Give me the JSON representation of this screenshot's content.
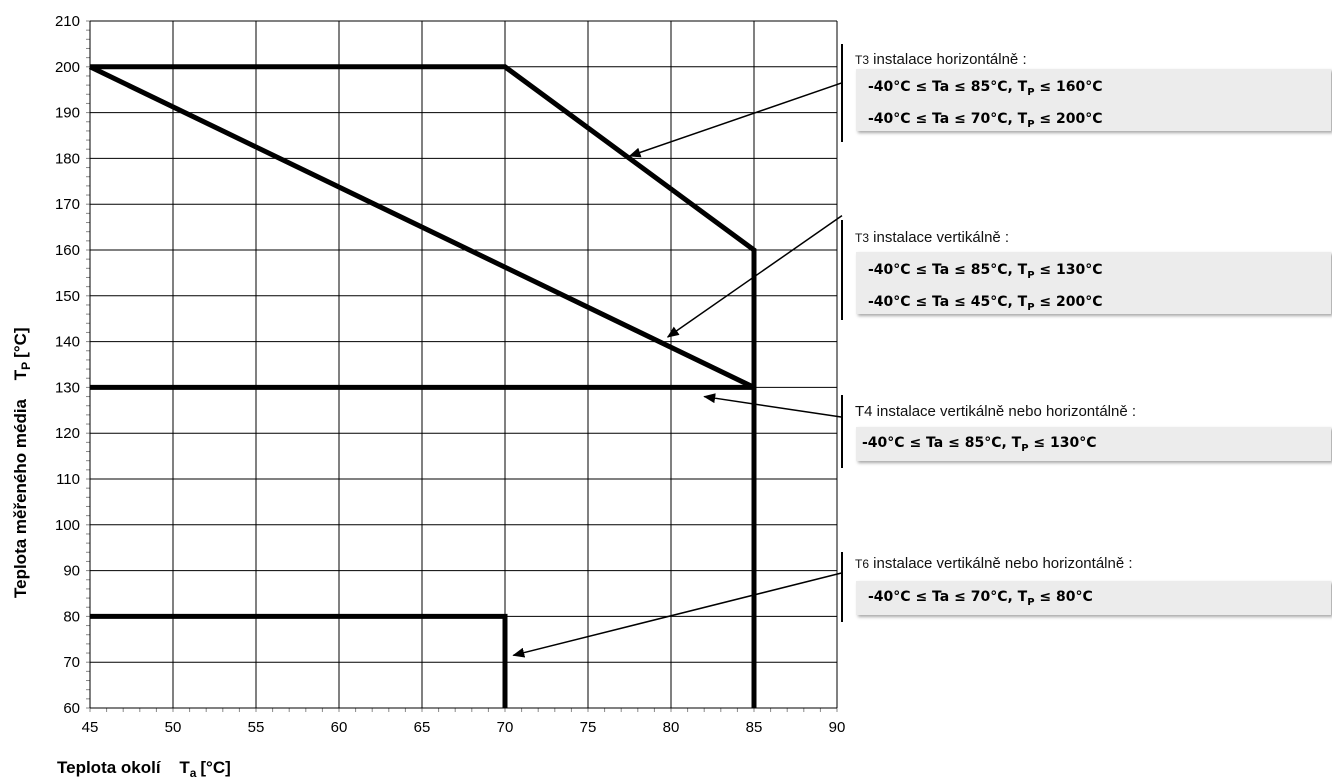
{
  "chart_data": {
    "type": "line",
    "xlabel": "Teplota okolí",
    "xlabel_unit": "T",
    "xlabel_unit_sub": "a",
    "xlabel_unit_tail": "[°C]",
    "ylabel": "Teplota měřeného média",
    "ylabel_unit": "T",
    "ylabel_unit_sub": "P",
    "ylabel_unit_tail": "[°C]",
    "xlim": [
      45,
      90
    ],
    "ylim": [
      60,
      210
    ],
    "xticks": [
      "45",
      "50",
      "55",
      "60",
      "65",
      "70",
      "75",
      "80",
      "85",
      "90"
    ],
    "yticks": [
      "60",
      "70",
      "80",
      "90",
      "100",
      "110",
      "120",
      "130",
      "140",
      "150",
      "160",
      "170",
      "180",
      "190",
      "200",
      "210"
    ],
    "grid": true,
    "series": [
      {
        "points": [
          [
            45,
            200
          ],
          [
            70,
            200
          ],
          [
            85,
            160
          ],
          [
            85,
            60
          ]
        ]
      },
      {
        "points": [
          [
            45,
            200
          ],
          [
            85,
            130
          ]
        ]
      },
      {
        "points": [
          [
            45,
            130
          ],
          [
            85,
            130
          ]
        ]
      },
      {
        "points": [
          [
            45,
            80
          ],
          [
            70,
            80
          ],
          [
            70,
            60
          ]
        ]
      }
    ],
    "arrows": [
      {
        "from": [
          90.3,
          196.5
        ],
        "to": [
          77.5,
          180.5
        ]
      },
      {
        "from": [
          90.3,
          167.5
        ],
        "to": [
          79.8,
          141.0
        ]
      },
      {
        "from": [
          90.3,
          123.5
        ],
        "to": [
          82.0,
          128.0
        ]
      },
      {
        "from": [
          90.3,
          89.5
        ],
        "to": [
          70.5,
          71.5
        ]
      }
    ]
  },
  "annotations": [
    {
      "prefix": "T3",
      "title": " instalace horizontálně :",
      "lines": [
        {
          "a": "-40°C ≤ Ta ≤ 85°C, T",
          "sub": "P",
          "b": " ≤ 160°C"
        },
        {
          "a": "-40°C ≤ Ta ≤ 70°C, T",
          "sub": "P",
          "b": " ≤ 200°C"
        }
      ]
    },
    {
      "prefix": "T3",
      "title": " instalace vertikálně :",
      "lines": [
        {
          "a": "-40°C ≤ Ta ≤ 85°C, T",
          "sub": "P",
          "b": " ≤ 130°C"
        },
        {
          "a": "-40°C ≤ Ta ≤ 45°C, T",
          "sub": "P",
          "b": " ≤ 200°C"
        }
      ]
    },
    {
      "prefix": "T4",
      "title": " instalace vertikálně nebo horizontálně :",
      "lines": [
        {
          "a": "-40°C ≤ Ta ≤ 85°C, T",
          "sub": "P",
          "b": " ≤ 130°C"
        }
      ]
    },
    {
      "prefix": "T6",
      "title": " instalace vertikálně nebo horizontálně :",
      "lines": [
        {
          "a": "-40°C ≤ Ta ≤ 70°C, T",
          "sub": "P",
          "b": " ≤ 80°C"
        }
      ]
    }
  ]
}
